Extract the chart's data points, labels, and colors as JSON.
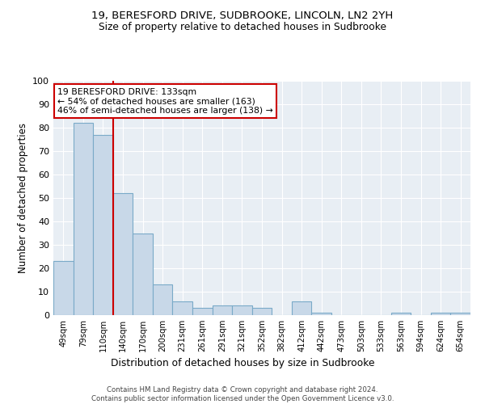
{
  "title1": "19, BERESFORD DRIVE, SUDBROOKE, LINCOLN, LN2 2YH",
  "title2": "Size of property relative to detached houses in Sudbrooke",
  "xlabel": "Distribution of detached houses by size in Sudbrooke",
  "ylabel": "Number of detached properties",
  "bar_color": "#c8d8e8",
  "bar_edge_color": "#7aaac8",
  "bg_color": "#e8eef4",
  "categories": [
    "49sqm",
    "79sqm",
    "110sqm",
    "140sqm",
    "170sqm",
    "200sqm",
    "231sqm",
    "261sqm",
    "291sqm",
    "321sqm",
    "352sqm",
    "382sqm",
    "412sqm",
    "442sqm",
    "473sqm",
    "503sqm",
    "533sqm",
    "563sqm",
    "594sqm",
    "624sqm",
    "654sqm"
  ],
  "values": [
    23,
    82,
    77,
    52,
    35,
    13,
    6,
    3,
    4,
    4,
    3,
    0,
    6,
    1,
    0,
    0,
    0,
    1,
    0,
    1,
    1
  ],
  "property_line_x": 2.5,
  "annotation_text": "19 BERESFORD DRIVE: 133sqm\n← 54% of detached houses are smaller (163)\n46% of semi-detached houses are larger (138) →",
  "annotation_box_color": "#ffffff",
  "annotation_edge_color": "#cc0000",
  "vline_color": "#cc0000",
  "footnote": "Contains HM Land Registry data © Crown copyright and database right 2024.\nContains public sector information licensed under the Open Government Licence v3.0.",
  "ylim": [
    0,
    100
  ],
  "yticks": [
    0,
    10,
    20,
    30,
    40,
    50,
    60,
    70,
    80,
    90,
    100
  ]
}
